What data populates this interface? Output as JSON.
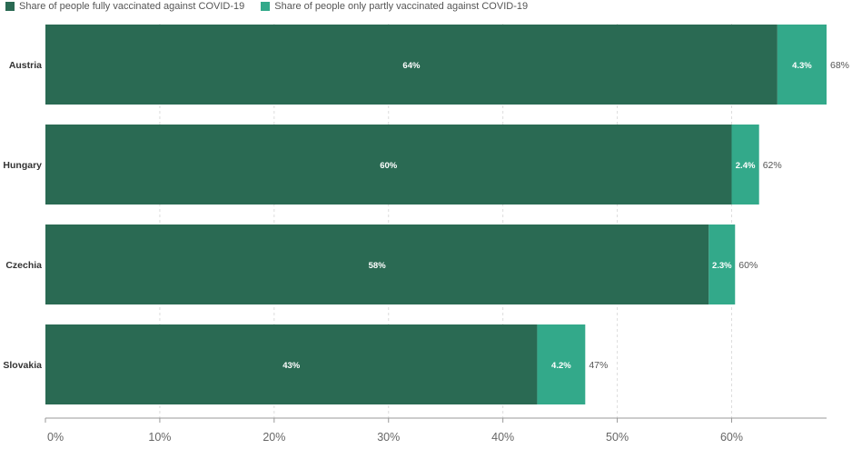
{
  "legend": {
    "fully_label": "Share of people fully vaccinated against COVID-19",
    "partly_label": "Share of people only partly vaccinated against COVID-19"
  },
  "colors": {
    "fully": "#2a6a53",
    "partly": "#33a98a",
    "grid": "#dddddd",
    "axis": "#999999"
  },
  "chart_data": {
    "type": "bar",
    "orientation": "horizontal",
    "stacked": true,
    "categories": [
      "Austria",
      "Hungary",
      "Czechia",
      "Slovakia"
    ],
    "series": [
      {
        "name": "Share of people fully vaccinated against COVID-19",
        "values": [
          64,
          60,
          58,
          43
        ],
        "labels": [
          "64%",
          "60%",
          "58%",
          "43%"
        ]
      },
      {
        "name": "Share of people only partly vaccinated against COVID-19",
        "values": [
          4.3,
          2.4,
          2.3,
          4.2
        ],
        "labels": [
          "4.3%",
          "2.4%",
          "2.3%",
          "4.2%"
        ]
      }
    ],
    "totals": [
      68,
      62,
      60,
      47
    ],
    "total_labels": [
      "68%",
      "62%",
      "60%",
      "47%"
    ],
    "xlim": [
      0,
      68.3
    ],
    "xticks": [
      0,
      10,
      20,
      30,
      40,
      50,
      60
    ],
    "xtick_labels": [
      "0%",
      "10%",
      "20%",
      "30%",
      "40%",
      "50%",
      "60%"
    ],
    "legend_position": "top-left",
    "grid": true
  }
}
